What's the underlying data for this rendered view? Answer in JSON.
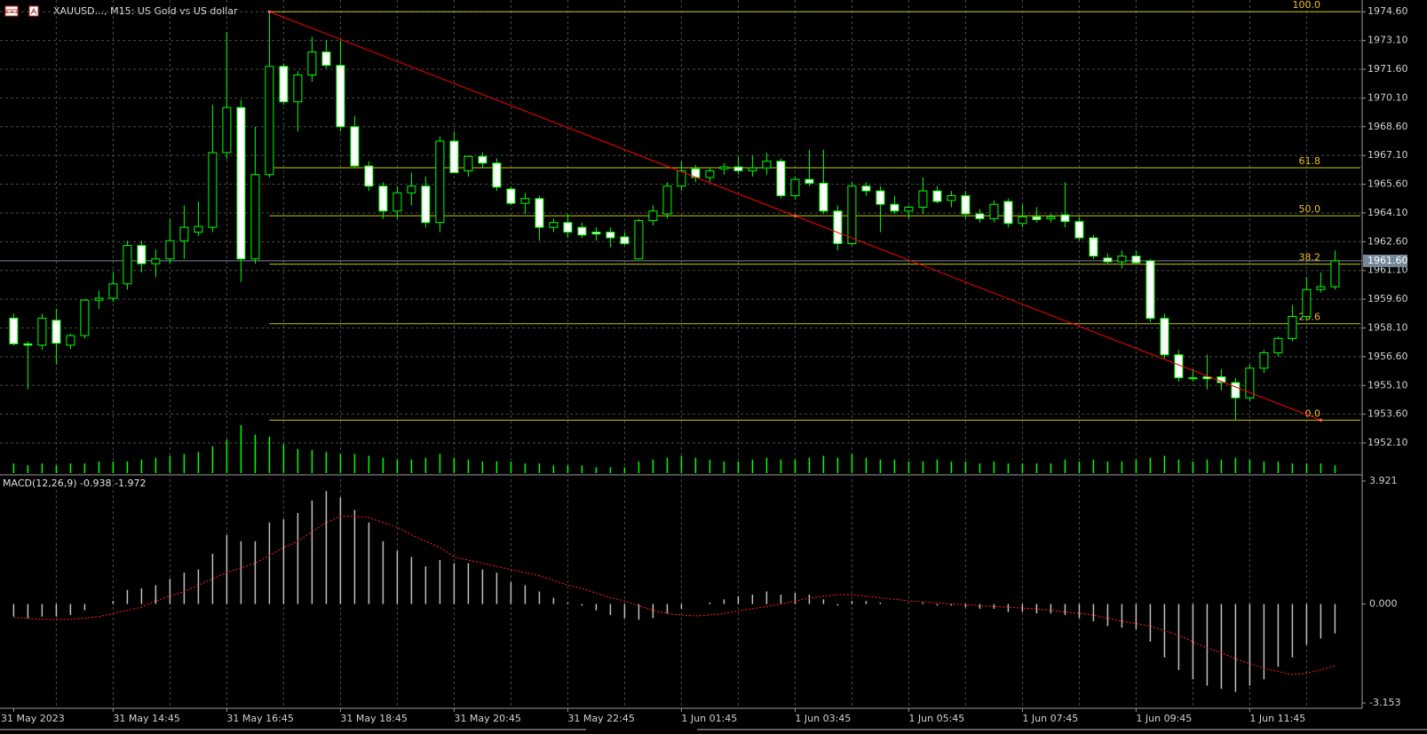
{
  "chart_data": [
    {
      "type": "candlestick",
      "title": "XAUUSD..., M15:  US Gold vs US dollar",
      "categories": [
        "31 May 2023",
        null,
        null,
        null,
        null,
        null,
        null,
        "31 May 14:45",
        null,
        null,
        null,
        null,
        null,
        null,
        null,
        "31 May 16:45",
        null,
        null,
        null,
        null,
        null,
        null,
        null,
        "31 May 18:45",
        null,
        null,
        null,
        null,
        null,
        null,
        null,
        "31 May 20:45",
        null,
        null,
        null,
        null,
        null,
        null,
        null,
        "31 May 22:45",
        null,
        null,
        null,
        null,
        null,
        null,
        null,
        "1 Jun 01:45",
        null,
        null,
        null,
        null,
        null,
        null,
        null,
        "1 Jun 03:45",
        null,
        null,
        null,
        null,
        null,
        null,
        null,
        "1 Jun 05:45",
        null,
        null,
        null,
        null,
        null,
        null,
        null,
        "1 Jun 07:45",
        null,
        null,
        null,
        null,
        null,
        null,
        null,
        "1 Jun 09:45",
        null,
        null,
        null,
        null,
        null,
        null,
        null,
        "1 Jun 11:45",
        null,
        null,
        null,
        null,
        null,
        null
      ],
      "open": [
        1958.61,
        1957.27,
        1957.2,
        1958.5,
        1957.2,
        1957.7,
        1959.55,
        1959.65,
        1960.4,
        1962.4,
        1961.45,
        1961.7,
        1962.65,
        1963.1,
        1963.35,
        1967.25,
        1969.6,
        1961.7,
        1966.1,
        1971.75,
        1969.9,
        1971.3,
        1972.5,
        1971.8,
        1968.6,
        1966.55,
        1965.5,
        1964.2,
        1965.15,
        1965.5,
        1963.6,
        1967.85,
        1966.3,
        1967.05,
        1966.7,
        1965.35,
        1964.6,
        1964.85,
        1963.35,
        1963.6,
        1963.35,
        1963.1,
        1963.1,
        1962.85,
        1961.7,
        1963.7,
        1964.05,
        1965.5,
        1966.4,
        1965.95,
        1966.4,
        1966.5,
        1966.3,
        1966.45,
        1966.8,
        1965.0,
        1965.85,
        1965.65,
        1964.2,
        1962.5,
        1965.5,
        1965.25,
        1964.55,
        1964.2,
        1964.4,
        1965.25,
        1964.75,
        1965.0,
        1964.05,
        1963.8,
        1964.7,
        1963.55,
        1963.9,
        1963.8,
        1964.0,
        1963.65,
        1962.8,
        1961.75,
        1961.55,
        1961.85,
        1961.6,
        1958.6,
        1956.7,
        1955.5,
        1955.55,
        1955.55,
        1955.25,
        1954.45,
        1956.0,
        1956.8,
        1957.55,
        1958.7,
        1960.1,
        1960.25
      ],
      "high": [
        1958.85,
        1957.4,
        1958.85,
        1959.1,
        1957.8,
        1959.6,
        1960.05,
        1961.0,
        1962.65,
        1962.65,
        1962.2,
        1963.8,
        1964.5,
        1964.7,
        1969.75,
        1973.55,
        1970.0,
        1968.6,
        1974.6,
        1971.9,
        1971.5,
        1973.3,
        1973.1,
        1973.1,
        1969.15,
        1966.8,
        1965.7,
        1965.5,
        1966.2,
        1966.0,
        1968.1,
        1968.35,
        1967.1,
        1967.25,
        1966.95,
        1965.5,
        1965.15,
        1965.0,
        1963.8,
        1964.05,
        1963.6,
        1963.35,
        1963.35,
        1963.1,
        1963.8,
        1964.5,
        1965.7,
        1966.8,
        1966.6,
        1966.45,
        1966.7,
        1967.05,
        1967.1,
        1967.25,
        1966.95,
        1966.0,
        1967.4,
        1967.4,
        1964.5,
        1965.7,
        1965.7,
        1965.5,
        1965.0,
        1964.5,
        1965.95,
        1965.5,
        1965.25,
        1965.25,
        1964.3,
        1964.75,
        1964.85,
        1964.55,
        1964.4,
        1964.05,
        1965.7,
        1963.9,
        1962.95,
        1962.0,
        1962.15,
        1962.15,
        1961.7,
        1958.85,
        1956.95,
        1955.95,
        1956.7,
        1955.95,
        1955.5,
        1956.2,
        1956.95,
        1957.65,
        1959.3,
        1960.75,
        1961.0,
        1962.15
      ],
      "low": [
        1957.18,
        1954.9,
        1956.95,
        1956.2,
        1957.0,
        1957.55,
        1959.1,
        1959.45,
        1960.1,
        1961.0,
        1960.75,
        1961.45,
        1961.7,
        1962.9,
        1963.1,
        1966.9,
        1960.5,
        1961.45,
        1965.95,
        1969.75,
        1968.35,
        1970.95,
        1971.65,
        1968.35,
        1966.45,
        1965.25,
        1963.8,
        1963.8,
        1964.5,
        1963.35,
        1963.1,
        1966.2,
        1966.0,
        1966.45,
        1965.25,
        1964.5,
        1964.05,
        1962.65,
        1963.1,
        1962.8,
        1962.8,
        1962.65,
        1962.3,
        1962.4,
        1961.7,
        1963.45,
        1963.8,
        1965.25,
        1965.7,
        1965.7,
        1966.1,
        1966.1,
        1966.0,
        1966.1,
        1964.85,
        1964.8,
        1965.5,
        1964.05,
        1962.15,
        1962.4,
        1965.0,
        1963.1,
        1964.05,
        1963.8,
        1964.05,
        1964.6,
        1964.4,
        1963.8,
        1963.6,
        1963.6,
        1963.35,
        1963.35,
        1963.6,
        1963.6,
        1963.35,
        1962.65,
        1961.7,
        1961.45,
        1961.2,
        1961.45,
        1958.4,
        1956.5,
        1955.3,
        1955.3,
        1954.9,
        1954.85,
        1953.29,
        1954.3,
        1955.75,
        1956.6,
        1957.4,
        1958.5,
        1959.95,
        1960.1
      ],
      "close": [
        1957.27,
        1957.2,
        1958.61,
        1957.3,
        1957.7,
        1959.55,
        1959.65,
        1960.4,
        1962.4,
        1961.45,
        1961.7,
        1962.65,
        1963.35,
        1963.4,
        1967.25,
        1969.6,
        1961.7,
        1966.1,
        1971.75,
        1969.9,
        1971.3,
        1972.5,
        1971.8,
        1968.6,
        1966.55,
        1965.5,
        1964.2,
        1965.15,
        1965.5,
        1963.6,
        1967.85,
        1966.2,
        1967.05,
        1966.7,
        1965.45,
        1964.6,
        1964.85,
        1963.35,
        1963.6,
        1963.1,
        1962.95,
        1963.0,
        1962.8,
        1962.5,
        1963.7,
        1964.2,
        1965.5,
        1966.3,
        1965.95,
        1966.3,
        1966.5,
        1966.3,
        1966.45,
        1966.8,
        1965.0,
        1965.85,
        1965.65,
        1964.2,
        1962.5,
        1965.5,
        1965.25,
        1964.55,
        1964.2,
        1964.4,
        1965.25,
        1964.7,
        1965.0,
        1964.05,
        1963.8,
        1964.55,
        1963.55,
        1963.9,
        1963.75,
        1963.9,
        1963.65,
        1962.8,
        1961.85,
        1961.55,
        1961.85,
        1961.5,
        1958.6,
        1956.7,
        1955.5,
        1955.45,
        1955.45,
        1955.25,
        1954.45,
        1956.0,
        1956.8,
        1957.55,
        1958.7,
        1960.1,
        1960.25,
        1961.6
      ],
      "volume": [
        10,
        8,
        10,
        8,
        10,
        10,
        12,
        12,
        12,
        14,
        16,
        18,
        20,
        22,
        28,
        35,
        50,
        40,
        38,
        30,
        25,
        24,
        22,
        20,
        20,
        18,
        16,
        14,
        14,
        16,
        20,
        16,
        14,
        12,
        12,
        12,
        10,
        10,
        8,
        8,
        8,
        6,
        6,
        6,
        12,
        14,
        16,
        18,
        16,
        14,
        12,
        12,
        14,
        16,
        14,
        14,
        16,
        18,
        16,
        20,
        16,
        14,
        14,
        12,
        12,
        14,
        12,
        12,
        10,
        12,
        10,
        10,
        10,
        10,
        14,
        12,
        14,
        12,
        12,
        14,
        16,
        18,
        14,
        12,
        14,
        14,
        16,
        14,
        12,
        12,
        10,
        10,
        10,
        8
      ],
      "ylim": [
        1950.48,
        1975.12
      ],
      "yticks": [
        {
          "value": 1974.6,
          "label": "1974.60"
        },
        {
          "value": 1973.1,
          "label": "1973.10"
        },
        {
          "value": 1971.6,
          "label": "1971.60"
        },
        {
          "value": 1970.1,
          "label": "1970.10"
        },
        {
          "value": 1968.6,
          "label": "1968.60"
        },
        {
          "value": 1967.1,
          "label": "1967.10"
        },
        {
          "value": 1965.6,
          "label": "1965.60"
        },
        {
          "value": 1964.1,
          "label": "1964.10"
        },
        {
          "value": 1962.6,
          "label": "1962.60"
        },
        {
          "value": 1961.1,
          "label": "1961.10"
        },
        {
          "value": 1959.6,
          "label": "1959.60"
        },
        {
          "value": 1958.1,
          "label": "1958.10"
        },
        {
          "value": 1956.6,
          "label": "1956.60"
        },
        {
          "value": 1955.1,
          "label": "1955.10"
        },
        {
          "value": 1953.6,
          "label": "1953.60"
        },
        {
          "value": 1952.1,
          "label": "1952.10"
        }
      ],
      "current_price": {
        "value": 1961.6,
        "label": "1961.60"
      },
      "grid": true,
      "colors": {
        "up_body": "#000000",
        "down_body": "#ffffff",
        "outline": "#00ff00",
        "volume": "#00ff00",
        "fib": "#c8c800",
        "fib_text": "#e8c020",
        "trendline": "#ff0000",
        "price_line": "#778899"
      },
      "fibonacci": {
        "start_index": 18,
        "levels": [
          {
            "label": "100.0",
            "price": 1974.6
          },
          {
            "label": "61.8",
            "price": 1966.46
          },
          {
            "label": "50.0",
            "price": 1963.95
          },
          {
            "label": "38.2",
            "price": 1961.43
          },
          {
            "label": "23.6",
            "price": 1958.32
          },
          {
            "label": "0.0",
            "price": 1953.29
          }
        ]
      },
      "trendline": {
        "start": {
          "index": 18,
          "price": 1974.6
        },
        "end": {
          "index": 92,
          "price": 1953.29
        }
      }
    },
    {
      "type": "macd",
      "title": "MACD(12,26,9) -0.938 -1.972",
      "histogram": [
        -0.4,
        -0.45,
        -0.4,
        -0.4,
        -0.35,
        -0.2,
        0,
        0.1,
        0.45,
        0.5,
        0.6,
        0.8,
        1.0,
        1.1,
        1.6,
        2.2,
        2.0,
        2.0,
        2.6,
        2.7,
        2.9,
        3.3,
        3.6,
        3.4,
        3.0,
        2.6,
        2.0,
        1.7,
        1.5,
        1.2,
        1.4,
        1.3,
        1.3,
        1.1,
        1.0,
        0.7,
        0.6,
        0.4,
        0.2,
        0.05,
        -0.05,
        -0.2,
        -0.35,
        -0.45,
        -0.5,
        -0.45,
        -0.3,
        -0.15,
        0,
        0.05,
        0.15,
        0.25,
        0.3,
        0.4,
        0.3,
        0.35,
        0.3,
        0.15,
        -0.05,
        0.1,
        0.1,
        0.05,
        0,
        0,
        0.05,
        -0.05,
        -0.05,
        -0.1,
        -0.15,
        -0.15,
        -0.25,
        -0.25,
        -0.3,
        -0.3,
        -0.35,
        -0.45,
        -0.55,
        -0.7,
        -0.75,
        -0.8,
        -1.2,
        -1.7,
        -2.1,
        -2.4,
        -2.6,
        -2.7,
        -2.8,
        -2.6,
        -2.4,
        -2.0,
        -1.7,
        -1.3,
        -1.1,
        -0.938
      ],
      "signal": [
        -0.43,
        -0.46,
        -0.48,
        -0.5,
        -0.48,
        -0.45,
        -0.4,
        -0.3,
        -0.2,
        -0.1,
        0.1,
        0.25,
        0.4,
        0.6,
        0.8,
        1.0,
        1.15,
        1.3,
        1.55,
        1.8,
        2.0,
        2.3,
        2.6,
        2.8,
        2.8,
        2.75,
        2.6,
        2.45,
        2.2,
        2.0,
        1.8,
        1.5,
        1.4,
        1.3,
        1.2,
        1.1,
        1.0,
        0.9,
        0.75,
        0.6,
        0.5,
        0.35,
        0.2,
        0.1,
        -0.05,
        -0.2,
        -0.3,
        -0.35,
        -0.38,
        -0.35,
        -0.3,
        -0.22,
        -0.15,
        -0.08,
        0,
        0.1,
        0.18,
        0.25,
        0.3,
        0.3,
        0.25,
        0.2,
        0.15,
        0.1,
        0.07,
        0.04,
        0,
        -0.02,
        -0.05,
        -0.08,
        -0.1,
        -0.13,
        -0.16,
        -0.2,
        -0.25,
        -0.3,
        -0.35,
        -0.45,
        -0.55,
        -0.62,
        -0.7,
        -0.85,
        -1.0,
        -1.2,
        -1.4,
        -1.55,
        -1.75,
        -1.9,
        -2.05,
        -2.15,
        -2.25,
        -2.2,
        -2.1,
        -1.972
      ],
      "ylim": [
        -3.294,
        4.09
      ],
      "yticks": [
        3.921,
        {
          "value": 0,
          "label": "0.000"
        },
        -3.153
      ],
      "colors": {
        "histogram": "#c0c0c0",
        "signal": "#ff2020"
      }
    }
  ]
}
